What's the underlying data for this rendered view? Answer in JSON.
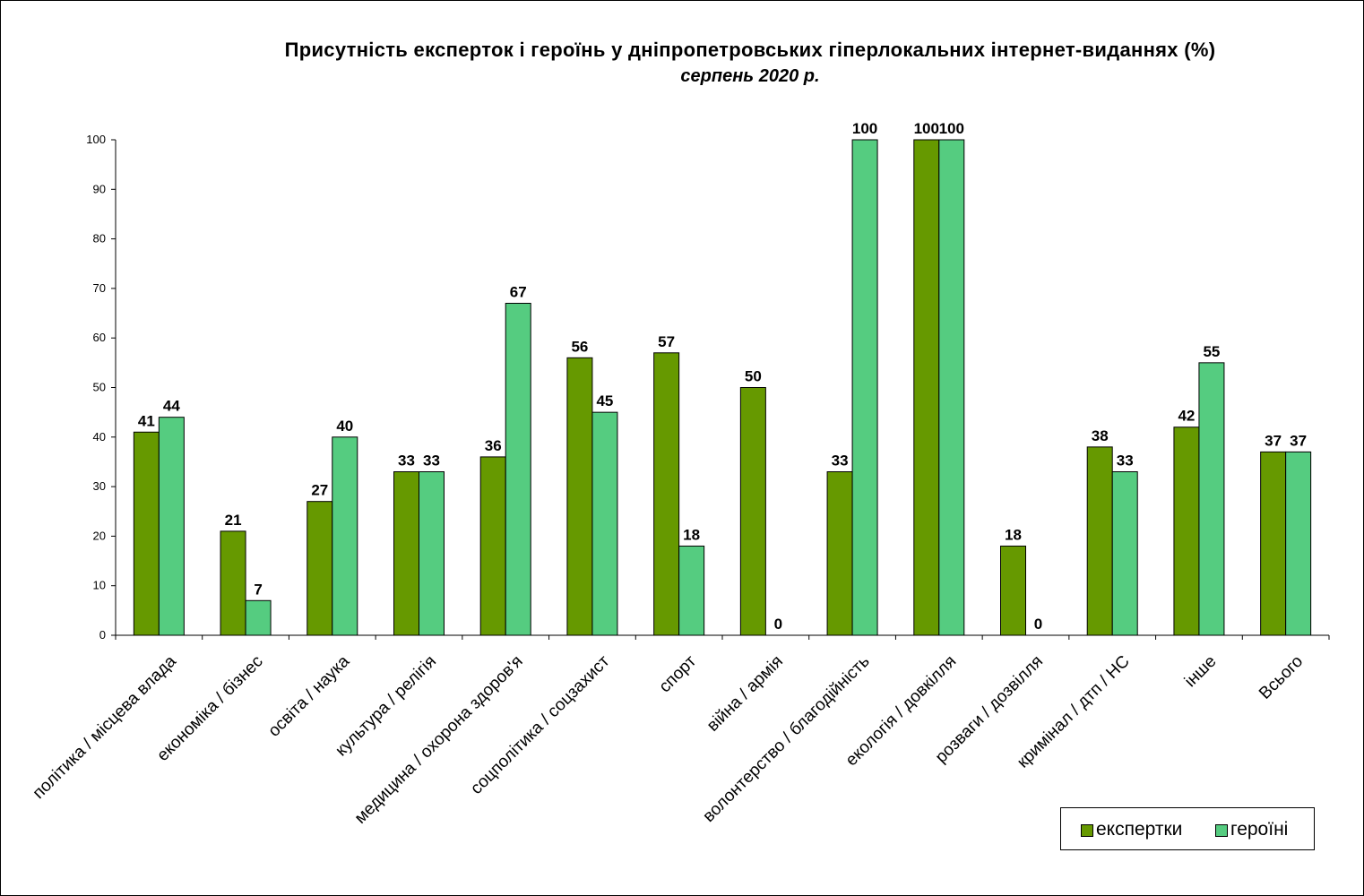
{
  "chart_data": {
    "type": "bar",
    "title": "Присутність експерток і героїнь у дніпропетровських гіперлокальних інтернет-виданнях (%)",
    "subtitle": "серпень 2020 р.",
    "categories": [
      "політика / місцева влада",
      "економіка / бізнес",
      "освіта / наука",
      "культура / релігія",
      "медицина / охорона здоров'я",
      "соцполітика / соцзахист",
      "спорт",
      "війна / армія",
      "волонтерство / благодійність",
      "екологія / довкілля",
      "розваги / дозвілля",
      "кримінал / дтп / НС",
      "інше",
      "Всього"
    ],
    "series": [
      {
        "name": "експертки",
        "color": "#669900",
        "values": [
          41,
          21,
          27,
          33,
          36,
          56,
          57,
          50,
          33,
          100,
          18,
          38,
          42,
          37
        ]
      },
      {
        "name": "героїні",
        "color": "#55cc80",
        "values": [
          44,
          7,
          40,
          33,
          67,
          45,
          18,
          0,
          100,
          100,
          0,
          33,
          55,
          37
        ]
      }
    ],
    "ylim": [
      0,
      100
    ],
    "yticks": [
      0,
      10,
      20,
      30,
      40,
      50,
      60,
      70,
      80,
      90,
      100
    ],
    "grid": false,
    "legend_position": "bottom-right",
    "xlabel": "",
    "ylabel": ""
  }
}
